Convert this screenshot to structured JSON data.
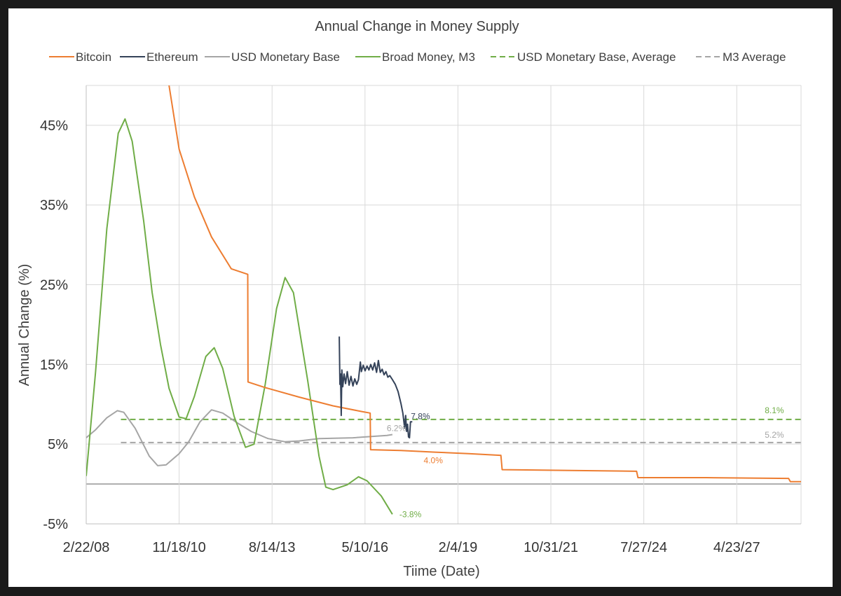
{
  "chart_data": {
    "type": "line",
    "title": "Annual Change in Money Supply",
    "xlabel": "Tiime (Date)",
    "ylabel": "Annual Change (%)",
    "x_axis_type": "date",
    "x_ticks": [
      "2/22/08",
      "11/18/10",
      "8/14/13",
      "5/10/16",
      "2/4/19",
      "10/31/21",
      "7/27/24",
      "4/23/27"
    ],
    "xlim": [
      "2008-02-22",
      "2029-03-15"
    ],
    "ylim": [
      -5,
      50
    ],
    "y_ticks": [
      -5,
      0,
      5,
      15,
      25,
      35,
      45
    ],
    "y_tick_labels": [
      "-5%",
      "",
      "5%",
      "15%",
      "25%",
      "35%",
      "45%"
    ],
    "grid": true,
    "legend_position": "top",
    "series": [
      {
        "name": "Bitcoin",
        "color": "#ed7d31",
        "style": "solid",
        "points": [
          [
            "2010-08-01",
            50
          ],
          [
            "2010-11-18",
            42
          ],
          [
            "2011-05-01",
            36
          ],
          [
            "2011-11-01",
            31
          ],
          [
            "2012-06-01",
            27
          ],
          [
            "2012-11-25",
            26.3
          ],
          [
            "2012-11-28",
            12.8
          ],
          [
            "2013-06-01",
            12.1
          ],
          [
            "2014-06-01",
            10.9
          ],
          [
            "2015-06-01",
            9.8
          ],
          [
            "2016-04-01",
            9.1
          ],
          [
            "2016-07-05",
            8.9
          ],
          [
            "2016-07-09",
            4.3
          ],
          [
            "2017-06-01",
            4.2
          ],
          [
            "2018-06-01",
            4.0
          ],
          [
            "2019-06-01",
            3.8
          ],
          [
            "2020-05-01",
            3.6
          ],
          [
            "2020-05-11",
            3.6
          ],
          [
            "2020-05-25",
            1.8
          ],
          [
            "2022-06-01",
            1.7
          ],
          [
            "2024-05-01",
            1.6
          ],
          [
            "2024-05-10",
            1.6
          ],
          [
            "2024-05-25",
            0.8
          ],
          [
            "2026-06-01",
            0.8
          ],
          [
            "2028-11-01",
            0.7
          ],
          [
            "2028-11-20",
            0.3
          ],
          [
            "2029-03-15",
            0.3
          ]
        ]
      },
      {
        "name": "Ethereum",
        "color": "#344259",
        "style": "solid",
        "points": [
          [
            "2015-08-07",
            18.5
          ],
          [
            "2015-08-14",
            12.5
          ],
          [
            "2015-08-21",
            13.8
          ],
          [
            "2015-08-28",
            8.6
          ],
          [
            "2015-09-04",
            14.3
          ],
          [
            "2015-09-14",
            12.2
          ],
          [
            "2015-09-28",
            13.8
          ],
          [
            "2015-10-14",
            12.6
          ],
          [
            "2015-11-01",
            14.1
          ],
          [
            "2015-11-21",
            12.4
          ],
          [
            "2015-12-11",
            13.5
          ],
          [
            "2016-01-01",
            12.3
          ],
          [
            "2016-01-21",
            13.2
          ],
          [
            "2016-02-11",
            12.5
          ],
          [
            "2016-03-01",
            13.1
          ],
          [
            "2016-03-21",
            15.3
          ],
          [
            "2016-04-01",
            14.1
          ],
          [
            "2016-04-21",
            14.9
          ],
          [
            "2016-05-11",
            14.2
          ],
          [
            "2016-06-01",
            14.8
          ],
          [
            "2016-06-21",
            14.3
          ],
          [
            "2016-07-11",
            15.0
          ],
          [
            "2016-08-01",
            14.3
          ],
          [
            "2016-08-21",
            15.2
          ],
          [
            "2016-09-11",
            14.0
          ],
          [
            "2016-10-01",
            15.5
          ],
          [
            "2016-10-21",
            14.0
          ],
          [
            "2016-11-11",
            14.4
          ],
          [
            "2016-12-01",
            13.7
          ],
          [
            "2016-12-21",
            14.1
          ],
          [
            "2017-01-11",
            13.4
          ],
          [
            "2017-02-01",
            13.6
          ],
          [
            "2017-03-01",
            13.1
          ],
          [
            "2017-04-01",
            12.5
          ],
          [
            "2017-05-01",
            11.6
          ],
          [
            "2017-06-01",
            10.1
          ],
          [
            "2017-06-21",
            8.9
          ],
          [
            "2017-07-11",
            7.0
          ],
          [
            "2017-07-21",
            8.6
          ],
          [
            "2017-08-01",
            6.6
          ],
          [
            "2017-08-11",
            7.5
          ],
          [
            "2017-08-21",
            5.9
          ],
          [
            "2017-09-01",
            5.8
          ],
          [
            "2017-09-11",
            7.8
          ],
          [
            "2017-10-01",
            7.8
          ]
        ]
      },
      {
        "name": "USD Monetary Base",
        "color": "#a5a5a5",
        "style": "solid",
        "points": [
          [
            "2008-02-22",
            5.8
          ],
          [
            "2008-06-01",
            6.8
          ],
          [
            "2008-10-01",
            8.3
          ],
          [
            "2009-01-22",
            9.2
          ],
          [
            "2009-04-01",
            9.0
          ],
          [
            "2009-08-01",
            7.0
          ],
          [
            "2010-01-01",
            3.5
          ],
          [
            "2010-04-01",
            2.3
          ],
          [
            "2010-07-01",
            2.4
          ],
          [
            "2010-11-18",
            3.8
          ],
          [
            "2011-03-01",
            5.3
          ],
          [
            "2011-07-01",
            7.8
          ],
          [
            "2011-11-01",
            9.3
          ],
          [
            "2012-03-01",
            8.9
          ],
          [
            "2012-08-01",
            7.7
          ],
          [
            "2013-01-01",
            6.6
          ],
          [
            "2013-07-01",
            5.7
          ],
          [
            "2014-01-01",
            5.3
          ],
          [
            "2014-06-01",
            5.4
          ],
          [
            "2015-01-01",
            5.7
          ],
          [
            "2016-01-01",
            5.8
          ],
          [
            "2017-01-01",
            6.1
          ],
          [
            "2017-03-01",
            6.2
          ]
        ]
      },
      {
        "name": "Broad Money, M3",
        "color": "#70ad47",
        "style": "solid",
        "points": [
          [
            "2008-02-22",
            1.0
          ],
          [
            "2008-06-01",
            14
          ],
          [
            "2008-10-01",
            32
          ],
          [
            "2009-02-01",
            44
          ],
          [
            "2009-04-15",
            45.8
          ],
          [
            "2009-07-01",
            43
          ],
          [
            "2009-11-01",
            33
          ],
          [
            "2010-02-01",
            24
          ],
          [
            "2010-05-01",
            17.5
          ],
          [
            "2010-08-01",
            12
          ],
          [
            "2010-11-18",
            8.4
          ],
          [
            "2011-02-01",
            8.2
          ],
          [
            "2011-05-01",
            11
          ],
          [
            "2011-09-01",
            16
          ],
          [
            "2011-12-01",
            17.1
          ],
          [
            "2012-03-01",
            14.5
          ],
          [
            "2012-07-01",
            8.5
          ],
          [
            "2012-11-01",
            4.6
          ],
          [
            "2013-02-01",
            5.0
          ],
          [
            "2013-06-01",
            12.5
          ],
          [
            "2013-10-01",
            22
          ],
          [
            "2014-01-01",
            25.9
          ],
          [
            "2014-04-01",
            24
          ],
          [
            "2014-09-01",
            13
          ],
          [
            "2015-01-01",
            3.5
          ],
          [
            "2015-03-15",
            -0.4
          ],
          [
            "2015-06-01",
            -0.7
          ],
          [
            "2015-11-01",
            -0.1
          ],
          [
            "2016-03-01",
            0.9
          ],
          [
            "2016-06-01",
            0.4
          ],
          [
            "2016-11-01",
            -1.5
          ],
          [
            "2017-03-01",
            -3.8
          ]
        ]
      },
      {
        "name": "USD Monetary Base, Average",
        "color": "#70ad47",
        "style": "dashed",
        "points": [
          [
            "2009-03-01",
            8.1
          ],
          [
            "2029-03-15",
            8.1
          ]
        ]
      },
      {
        "name": "M3 Average",
        "color": "#a5a5a5",
        "style": "dashed",
        "points": [
          [
            "2009-03-01",
            5.2
          ],
          [
            "2029-03-15",
            5.2
          ]
        ]
      }
    ],
    "annotations": [
      {
        "text": "7.8%",
        "x": "2017-10-01",
        "y": 7.8,
        "color": "#344259"
      },
      {
        "text": "6.2%",
        "x": "2017-03-01",
        "y": 6.2,
        "color": "#a5a5a5"
      },
      {
        "text": "4.0%",
        "x": "2018-06-01",
        "y": 4.0,
        "color": "#ed7d31"
      },
      {
        "text": "-3.8%",
        "x": "2017-03-01",
        "y": -3.8,
        "color": "#70ad47"
      },
      {
        "text": "8.1%",
        "x": "2028-06-01",
        "y": 8.1,
        "color": "#70ad47"
      },
      {
        "text": "5.2%",
        "x": "2028-06-01",
        "y": 5.2,
        "color": "#a5a5a5"
      }
    ]
  }
}
